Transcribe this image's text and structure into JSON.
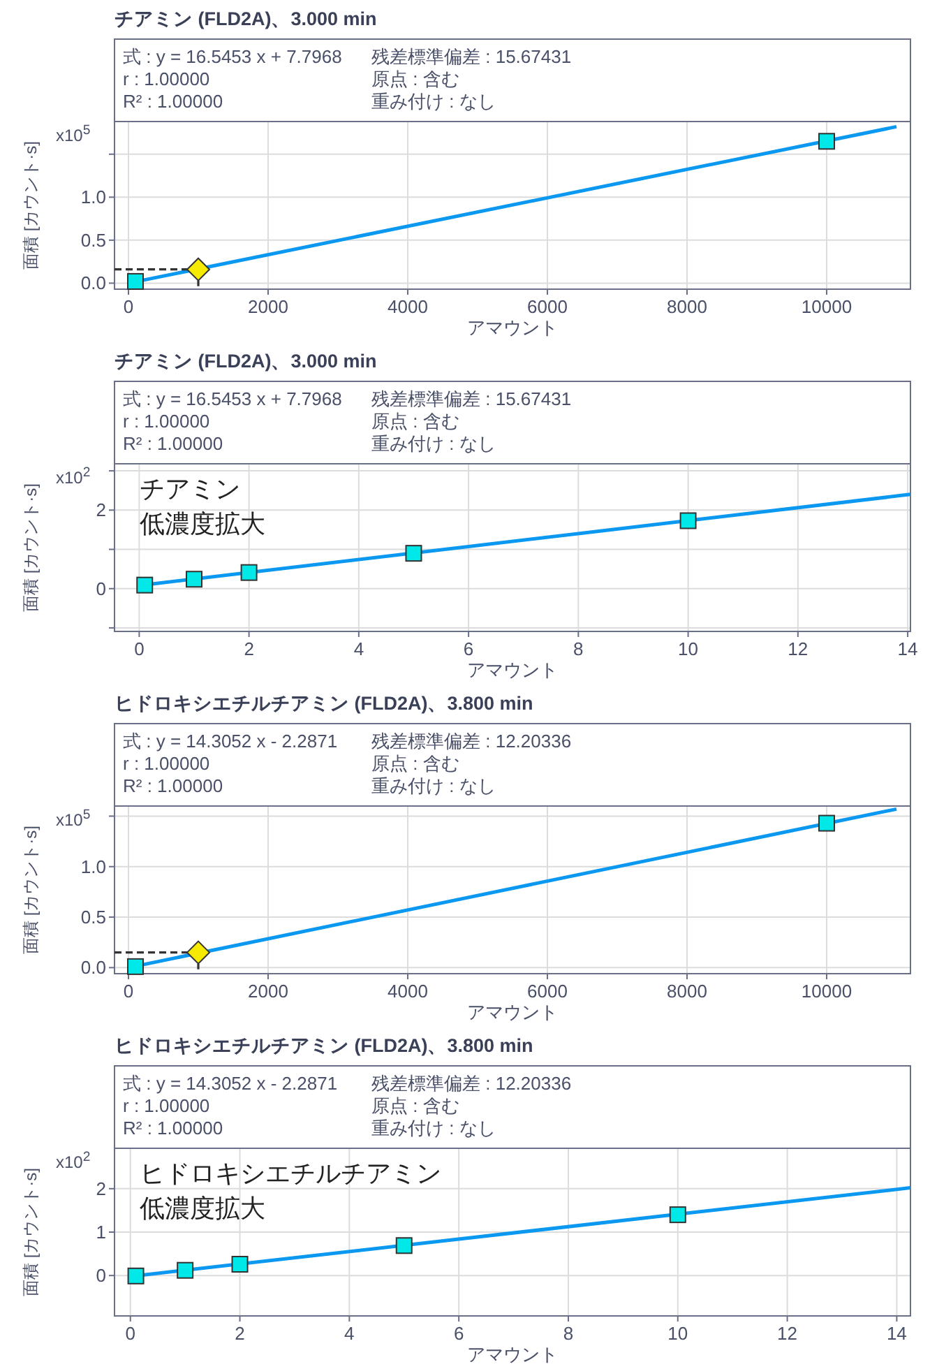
{
  "chart_data": [
    {
      "type": "scatter",
      "title": "チアミン (FLD2A)、3.000 min",
      "xlabel": "アマウント",
      "ylabel": "面積 [カウント·s]",
      "annotations": [
        "式 : y = 16.5453 x + 7.7968",
        "r : 1.00000",
        "R² : 1.00000",
        "残差標準偏差 : 15.67431",
        "原点 : 含む",
        "重み付け : なし",
        "x10$^{5}$"
      ],
      "xlim": [
        -200,
        11200
      ],
      "xticks": [
        0,
        2000,
        4000,
        6000,
        8000,
        10000
      ],
      "ylim": [
        -0.07,
        1.88
      ],
      "yticks": [
        {
          "value": 0,
          "label": "0.0"
        },
        0.5,
        {
          "value": 1,
          "label": "1.0"
        },
        {
          "value": 1.5,
          "label": null
        }
      ],
      "grid": true,
      "series": [
        {
          "type": "line",
          "color": "#0a98f0",
          "x": [
            0,
            11000
          ],
          "values": [
            0.0,
            1.82
          ],
          "marker": "none",
          "line_style": "solid"
        },
        {
          "color": "#00e8e8",
          "x": [
            100,
            10000
          ],
          "values": [
            0.02,
            1.65
          ],
          "marker": "square"
        },
        {
          "color": "#f5ea00",
          "x": [
            1000
          ],
          "values": [
            0.16
          ],
          "marker": "diamond"
        }
      ]
    },
    {
      "type": "scatter",
      "title": "チアミン (FLD2A)、3.000 min",
      "xlabel": "アマウント",
      "ylabel": "面積 [カウント·s]",
      "annotations": [
        "式 : y = 16.5453 x + 7.7968",
        "r : 1.00000",
        "R² : 1.00000",
        "残差標準偏差 : 15.67431",
        "原点 : 含む",
        "重み付け : なし",
        "x10$^{2}$",
        "チアミン",
        "低濃度拡大"
      ],
      "xlim": [
        -0.45,
        14.05
      ],
      "xticks": [
        0,
        2,
        4,
        6,
        8,
        10,
        12,
        14
      ],
      "ylim": [
        -1.09,
        3.18
      ],
      "yticks": [
        {
          "value": -1,
          "label": null
        },
        0,
        {
          "value": 1,
          "label": null
        },
        2,
        {
          "value": 3,
          "label": null
        }
      ],
      "grid": true,
      "series": [
        {
          "type": "line",
          "color": "#0a98f0",
          "x": [
            0,
            14.05
          ],
          "values": [
            0.08,
            2.4
          ],
          "marker": "none",
          "line_style": "solid"
        },
        {
          "color": "#00e8e8",
          "x": [
            0.1,
            1,
            2,
            5,
            10
          ],
          "values": [
            0.09,
            0.24,
            0.41,
            0.9,
            1.73
          ],
          "marker": "square"
        }
      ]
    },
    {
      "type": "scatter",
      "title": "ヒドロキシエチルチアミン (FLD2A)、3.800 min",
      "xlabel": "アマウント",
      "ylabel": "面積 [カウント·s]",
      "annotations": [
        "式 : y = 14.3052 x - 2.2871",
        "r : 1.00000",
        "R² : 1.00000",
        "残差標準偏差 : 12.20336",
        "原点 : 含む",
        "重み付け : なし",
        "x10$^{5}$"
      ],
      "xlim": [
        -200,
        11200
      ],
      "xticks": [
        0,
        2000,
        4000,
        6000,
        8000,
        10000
      ],
      "ylim": [
        -0.06,
        1.6
      ],
      "yticks": [
        {
          "value": 0,
          "label": "0.0"
        },
        0.5,
        {
          "value": 1,
          "label": "1.0"
        },
        {
          "value": 1.5,
          "label": null
        }
      ],
      "grid": true,
      "series": [
        {
          "type": "line",
          "color": "#0a98f0",
          "x": [
            0,
            11000
          ],
          "values": [
            0.0,
            1.57
          ],
          "marker": "none",
          "line_style": "solid"
        },
        {
          "color": "#00e8e8",
          "x": [
            100,
            10000
          ],
          "values": [
            0.01,
            1.43
          ],
          "marker": "square"
        },
        {
          "color": "#f5ea00",
          "x": [
            1000
          ],
          "values": [
            0.15
          ],
          "marker": "diamond"
        }
      ]
    },
    {
      "type": "scatter",
      "title": "ヒドロキシエチルチアミン (FLD2A)、3.800 min",
      "xlabel": "アマウント",
      "ylabel": "面積 [カウント·s]",
      "annotations": [
        "式 : y = 14.3052 x - 2.2871",
        "r : 1.00000",
        "R² : 1.00000",
        "残差標準偏差 : 12.20336",
        "原点 : 含む",
        "重み付け : なし",
        "x10$^{2}$",
        "ヒドロキシエチルチアミン",
        "低濃度拡大"
      ],
      "xlim": [
        -0.29,
        14.25
      ],
      "xticks": [
        0,
        2,
        4,
        6,
        8,
        10,
        12,
        14
      ],
      "ylim": [
        -0.93,
        2.93
      ],
      "yticks": [
        0,
        1,
        2
      ],
      "grid": true,
      "series": [
        {
          "type": "line",
          "color": "#0a98f0",
          "x": [
            0,
            14.25
          ],
          "values": [
            -0.02,
            2.02
          ],
          "marker": "none",
          "line_style": "solid"
        },
        {
          "color": "#00e8e8",
          "x": [
            0.1,
            1,
            2,
            5,
            10
          ],
          "values": [
            -0.01,
            0.12,
            0.26,
            0.69,
            1.4
          ],
          "marker": "square"
        }
      ]
    }
  ]
}
